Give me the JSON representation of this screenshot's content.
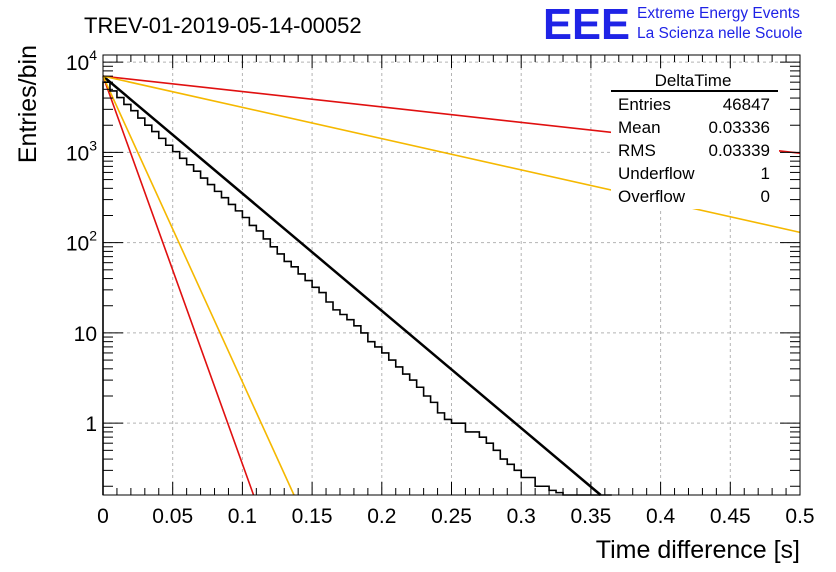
{
  "chart_data": {
    "type": "line",
    "title": "TREV-01-2019-05-14-00052",
    "xlabel": "Time difference [s]",
    "ylabel": "Entries/bin",
    "xlim": [
      0,
      0.5
    ],
    "ylim": [
      0.16,
      12000
    ],
    "y_scale": "log",
    "grid": true,
    "x_ticks": [
      0,
      0.05,
      0.1,
      0.15,
      0.2,
      0.25,
      0.3,
      0.35,
      0.4,
      0.45,
      0.5
    ],
    "x_tick_labels": [
      "0",
      "0.05",
      "0.1",
      "0.15",
      "0.2",
      "0.25",
      "0.3",
      "0.35",
      "0.4",
      "0.45",
      "0.5"
    ],
    "y_ticks": [
      1,
      10,
      100,
      1000,
      10000
    ],
    "y_tick_labels": [
      {
        "base": "1",
        "exp": ""
      },
      {
        "base": "10",
        "exp": ""
      },
      {
        "base": "10",
        "exp": "2"
      },
      {
        "base": "10",
        "exp": "3"
      },
      {
        "base": "10",
        "exp": "4"
      }
    ],
    "histogram": {
      "name": "DeltaTime",
      "bin_width": 0.005,
      "x_start": 0,
      "color": "#000000",
      "counts": [
        6000,
        4800,
        4050,
        3400,
        2900,
        2400,
        2000,
        1700,
        1430,
        1200,
        1020,
        860,
        730,
        620,
        520,
        440,
        370,
        315,
        265,
        225,
        190,
        155,
        135,
        110,
        90,
        75,
        62,
        54,
        45,
        38,
        32,
        28,
        22,
        18,
        16,
        14,
        12,
        10,
        8,
        7,
        6,
        5,
        4.2,
        3.5,
        3,
        2.5,
        2,
        1.7,
        1.3,
        1.1,
        1,
        1,
        0.8,
        0.8,
        0.7,
        0.6,
        0.5,
        0.4,
        0.35,
        0.3,
        0.25,
        0.25,
        0.2,
        0.2,
        0.18,
        0.17,
        0.16,
        0.16,
        0.16,
        0.16,
        0.16,
        0.16,
        0.16
      ]
    },
    "fit_lines": [
      {
        "name": "fit",
        "color": "#000000",
        "width": 2.5,
        "x0": 0,
        "y0": 7000,
        "x1": 0.357,
        "y1": 0.16
      },
      {
        "name": "red-steep",
        "color": "#e01010",
        "width": 1.6,
        "x0": 0,
        "y0": 7000,
        "x1": 0.108,
        "y1": 0.16
      },
      {
        "name": "orange-steep",
        "color": "#f5b800",
        "width": 1.6,
        "x0": 0,
        "y0": 7000,
        "x1": 0.137,
        "y1": 0.16
      },
      {
        "name": "red-shallow",
        "color": "#e01010",
        "width": 1.6,
        "x0": 0,
        "y0": 7000,
        "x1": 0.5,
        "y1": 980
      },
      {
        "name": "orange-shallow",
        "color": "#f5b800",
        "width": 1.6,
        "x0": 0,
        "y0": 7000,
        "x1": 0.5,
        "y1": 130
      }
    ],
    "stats_box": {
      "title": "DeltaTime",
      "rows": [
        {
          "label": "Entries",
          "value": "46847"
        },
        {
          "label": "Mean",
          "value": "0.03336"
        },
        {
          "label": "RMS",
          "value": "0.03339"
        },
        {
          "label": "Underflow",
          "value": "1"
        },
        {
          "label": "Overflow",
          "value": "0"
        }
      ]
    }
  },
  "logo": {
    "big": "EEE",
    "line1": "Extreme Energy Events",
    "line2": "La Scienza nelle Scuole",
    "color": "#1f23e6"
  }
}
